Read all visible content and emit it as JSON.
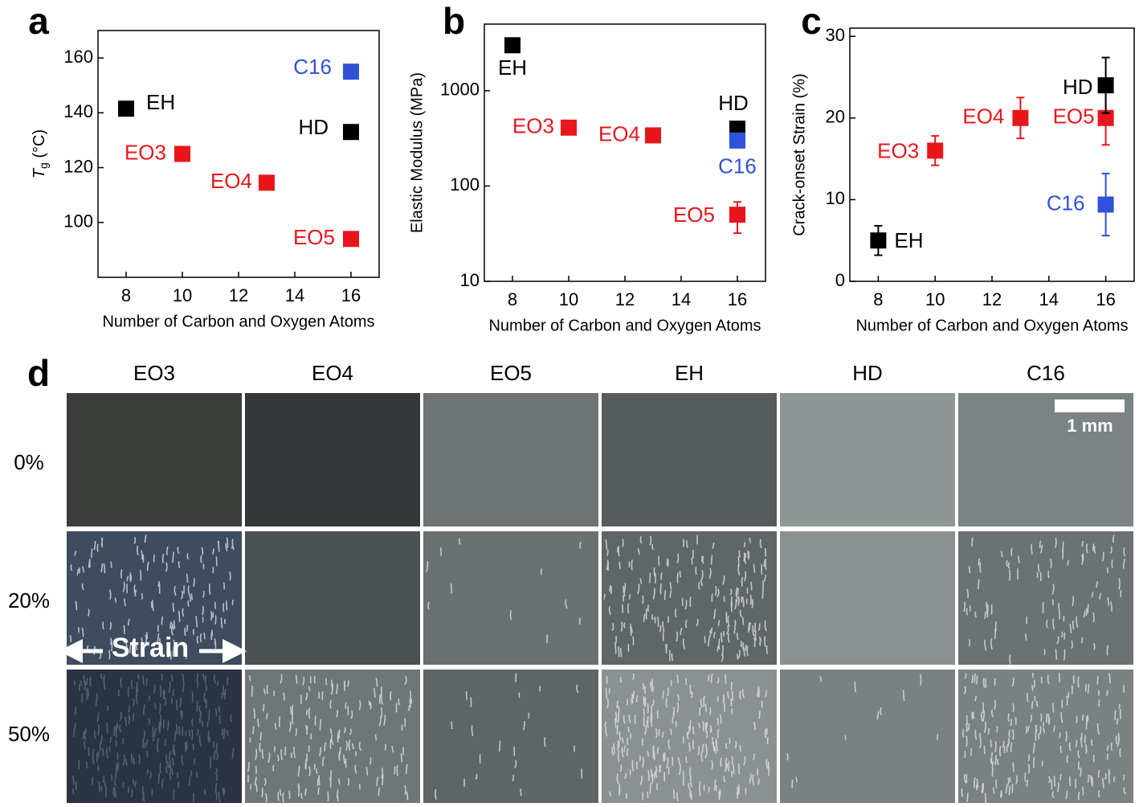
{
  "chart_data": [
    {
      "type": "scatter",
      "panel": "a",
      "x_label": "Number of Carbon and Oxygen Atoms",
      "y_label": "Tg (°C)",
      "xlim": [
        7,
        17
      ],
      "xticks": [
        8,
        10,
        12,
        14,
        16
      ],
      "ylim": [
        80,
        170
      ],
      "yticks": [
        100,
        120,
        140,
        160
      ],
      "series": [
        {
          "name": "EH",
          "color": "#000000",
          "x": [
            8
          ],
          "values": [
            141.5
          ]
        },
        {
          "name": "EO3",
          "color": "#e8161b",
          "x": [
            10
          ],
          "values": [
            125
          ]
        },
        {
          "name": "EO4",
          "color": "#e8161b",
          "x": [
            13
          ],
          "values": [
            114.5
          ]
        },
        {
          "name": "EO5",
          "color": "#e8161b",
          "x": [
            16
          ],
          "values": [
            94
          ]
        },
        {
          "name": "HD",
          "color": "#000000",
          "x": [
            16
          ],
          "values": [
            133
          ]
        },
        {
          "name": "C16",
          "color": "#2f52d9",
          "x": [
            16
          ],
          "values": [
            155
          ]
        }
      ]
    },
    {
      "type": "scatter",
      "panel": "b",
      "x_label": "Number of Carbon and Oxygen Atoms",
      "y_label": "Elastic Modulus (MPa)",
      "log_scale": true,
      "xlim": [
        7,
        17
      ],
      "xticks": [
        8,
        10,
        12,
        14,
        16
      ],
      "ylim": [
        10,
        5000
      ],
      "yticks": [
        10,
        100,
        1000
      ],
      "series": [
        {
          "name": "EH",
          "color": "#000000",
          "x": [
            8
          ],
          "values": [
            3000
          ]
        },
        {
          "name": "EO3",
          "color": "#e8161b",
          "x": [
            10
          ],
          "values": [
            410
          ]
        },
        {
          "name": "EO4",
          "color": "#e8161b",
          "x": [
            13
          ],
          "values": [
            340
          ]
        },
        {
          "name": "HD",
          "color": "#000000",
          "x": [
            16
          ],
          "values": [
            400
          ]
        },
        {
          "name": "C16",
          "color": "#2f52d9",
          "x": [
            16
          ],
          "values": [
            300
          ]
        },
        {
          "name": "EO5",
          "color": "#e8161b",
          "x": [
            16
          ],
          "values": [
            50
          ],
          "errors": [
            18
          ]
        }
      ]
    },
    {
      "type": "scatter",
      "panel": "c",
      "x_label": "Number of Carbon and Oxygen Atoms",
      "y_label": "Crack-onset Strain (%)",
      "xlim": [
        7,
        17
      ],
      "xticks": [
        8,
        10,
        12,
        14,
        16
      ],
      "ylim": [
        0,
        31
      ],
      "yticks": [
        0,
        10,
        20,
        30
      ],
      "series": [
        {
          "name": "EH",
          "color": "#000000",
          "x": [
            8
          ],
          "values": [
            5
          ],
          "errors": [
            1.8
          ]
        },
        {
          "name": "EO3",
          "color": "#e8161b",
          "x": [
            10
          ],
          "values": [
            16
          ],
          "errors": [
            1.8
          ]
        },
        {
          "name": "EO4",
          "color": "#e8161b",
          "x": [
            13
          ],
          "values": [
            20
          ],
          "errors": [
            2.5
          ]
        },
        {
          "name": "EO5",
          "color": "#e8161b",
          "x": [
            16
          ],
          "values": [
            20
          ],
          "errors": [
            3.3
          ]
        },
        {
          "name": "HD",
          "color": "#000000",
          "x": [
            16
          ],
          "values": [
            24
          ],
          "errors": [
            3.4
          ]
        },
        {
          "name": "C16",
          "color": "#2f52d9",
          "x": [
            16
          ],
          "values": [
            9.4
          ],
          "errors": [
            3.8
          ]
        }
      ]
    }
  ],
  "panel_d": {
    "label": "d",
    "columns": [
      "EO3",
      "EO4",
      "EO5",
      "EH",
      "HD",
      "C16"
    ],
    "rows": [
      "0%",
      "20%",
      "50%"
    ],
    "scale_bar": "1 mm",
    "annotation": "Strain"
  }
}
